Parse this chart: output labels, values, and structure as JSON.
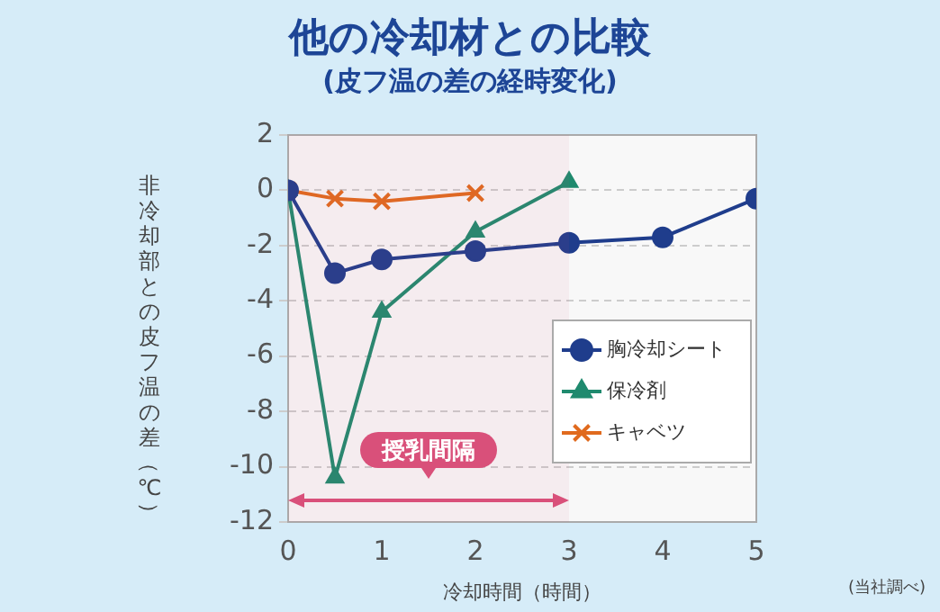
{
  "chart_data": {
    "type": "line",
    "title": "他の冷却材との比較",
    "subtitle": "(皮フ温の差の経時変化)",
    "xlabel": "冷却時間（時間）",
    "ylabel": "非冷却部との皮フ温の差（℃）",
    "xlim": [
      0,
      5
    ],
    "xticks": [
      0,
      1,
      2,
      3,
      4,
      5
    ],
    "ylim": [
      -12,
      2
    ],
    "yticks": [
      -12,
      -10,
      -8,
      -6,
      -4,
      -2,
      0,
      2
    ],
    "grid": "y",
    "legend": "right",
    "series": [
      {
        "name": "胸冷却シート",
        "color": "#1f3d8c",
        "marker": "circle",
        "x": [
          0,
          0.5,
          1,
          2,
          3,
          4,
          5
        ],
        "values": [
          0,
          -3,
          -2.5,
          -2.2,
          -1.9,
          -1.7,
          -0.3
        ]
      },
      {
        "name": "保冷剤",
        "color": "#1f8a6e",
        "marker": "triangle",
        "x": [
          0,
          0.5,
          1,
          2,
          3
        ],
        "values": [
          0,
          -10.4,
          -4.4,
          -1.5,
          0.3
        ]
      },
      {
        "name": "キャベツ",
        "color": "#e06a1e",
        "marker": "cross",
        "x": [
          0,
          0.5,
          1,
          2
        ],
        "values": [
          0,
          -0.3,
          -0.4,
          -0.1
        ]
      }
    ],
    "bands": [
      {
        "axis": "x",
        "from": 0,
        "to": 3,
        "label": "授乳間隔",
        "color": "#d9507a"
      }
    ],
    "annotations": [
      "(当社調べ)"
    ]
  }
}
